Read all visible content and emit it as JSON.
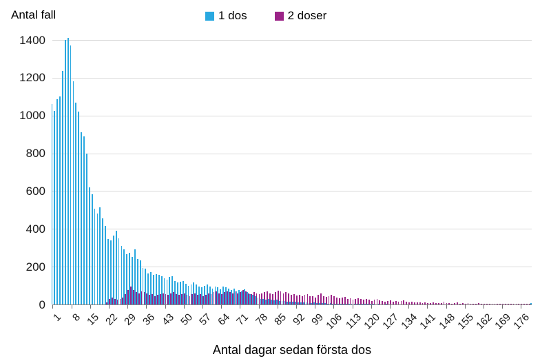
{
  "y_axis_title": "Antal fall",
  "x_axis_title": "Antal dagar sedan första dos",
  "legend": {
    "items": [
      {
        "label": "1 dos",
        "color": "#29a8e0",
        "icon": "blue-square-swatch"
      },
      {
        "label": "2 doser",
        "color": "#9b2387",
        "icon": "purple-square-swatch"
      }
    ]
  },
  "colors": {
    "series_1_dos": "#29a8e0",
    "series_2_doser": "#9b2387",
    "gridline": "#d9d9d9",
    "axis": "#898989",
    "text": "#000000"
  },
  "chart_data": {
    "type": "bar",
    "title": "",
    "xlabel": "Antal dagar sedan första dos",
    "ylabel": "Antal fall",
    "x_unit": "days since first dose",
    "x_range": [
      1,
      180
    ],
    "ylim": [
      0,
      1400
    ],
    "y_ticks": [
      0,
      200,
      400,
      600,
      800,
      1000,
      1200,
      1400
    ],
    "x_tick_labels": [
      "1",
      "8",
      "15",
      "22",
      "29",
      "36",
      "43",
      "50",
      "57",
      "64",
      "71",
      "78",
      "85",
      "92",
      "99",
      "106",
      "113",
      "120",
      "127",
      "134",
      "141",
      "148",
      "155",
      "162",
      "169",
      "176"
    ],
    "grid": true,
    "legend_position": "top-center",
    "series": [
      {
        "name": "1 dos",
        "color": "#29a8e0",
        "values": [
          1060,
          1025,
          1085,
          1100,
          1235,
          1400,
          1410,
          1370,
          1180,
          1070,
          1020,
          910,
          890,
          800,
          620,
          585,
          505,
          480,
          515,
          455,
          415,
          345,
          340,
          365,
          390,
          350,
          310,
          290,
          265,
          275,
          250,
          290,
          240,
          235,
          195,
          190,
          165,
          170,
          155,
          160,
          155,
          150,
          140,
          130,
          145,
          150,
          125,
          115,
          120,
          125,
          110,
          100,
          105,
          115,
          105,
          95,
          90,
          100,
          105,
          95,
          85,
          95,
          90,
          80,
          95,
          90,
          85,
          75,
          85,
          70,
          75,
          70,
          80,
          65,
          55,
          50,
          45,
          35,
          30,
          28,
          25,
          28,
          24,
          22,
          25,
          20,
          18,
          20,
          16,
          15,
          14,
          16,
          12,
          10,
          12,
          10,
          9,
          8,
          10,
          8,
          7,
          8,
          6,
          5,
          6,
          5,
          4,
          5,
          4,
          3,
          4,
          3,
          3,
          2,
          3,
          2,
          2,
          3,
          2,
          2,
          2,
          1,
          2,
          1,
          1,
          2,
          1,
          1,
          1,
          1,
          1,
          1,
          1,
          0,
          1,
          0,
          1,
          0,
          1,
          0,
          1,
          0,
          0,
          1,
          0,
          0,
          1,
          0,
          0,
          1,
          0,
          0,
          1,
          0,
          0,
          0,
          1,
          0,
          0,
          0,
          0,
          1,
          0,
          0,
          0,
          1,
          0,
          0,
          0,
          0,
          0,
          0,
          1,
          0,
          0,
          0,
          0,
          0,
          0,
          8
        ]
      },
      {
        "name": "2 doser",
        "color": "#9b2387",
        "values": [
          0,
          0,
          0,
          0,
          0,
          0,
          0,
          0,
          0,
          0,
          0,
          0,
          0,
          0,
          0,
          0,
          0,
          0,
          0,
          0,
          10,
          30,
          35,
          30,
          25,
          30,
          35,
          55,
          75,
          95,
          75,
          65,
          60,
          70,
          65,
          60,
          50,
          55,
          45,
          50,
          55,
          60,
          55,
          50,
          60,
          65,
          55,
          50,
          55,
          60,
          50,
          45,
          55,
          60,
          50,
          55,
          45,
          50,
          60,
          55,
          65,
          70,
          60,
          55,
          65,
          70,
          65,
          60,
          70,
          60,
          65,
          75,
          70,
          60,
          55,
          65,
          60,
          55,
          60,
          65,
          70,
          60,
          55,
          65,
          72,
          68,
          60,
          65,
          58,
          52,
          55,
          48,
          52,
          45,
          50,
          55,
          45,
          42,
          38,
          52,
          58,
          45,
          40,
          44,
          50,
          42,
          36,
          32,
          36,
          40,
          30,
          34,
          26,
          30,
          34,
          28,
          24,
          28,
          24,
          20,
          24,
          28,
          22,
          18,
          15,
          18,
          22,
          14,
          18,
          14,
          18,
          22,
          14,
          10,
          14,
          10,
          12,
          10,
          8,
          10,
          8,
          6,
          10,
          8,
          6,
          8,
          14,
          6,
          8,
          5,
          6,
          12,
          5,
          6,
          5,
          8,
          5,
          4,
          5,
          6,
          4,
          5,
          4,
          3,
          5,
          4,
          3,
          4,
          3,
          3,
          4,
          3,
          2,
          3,
          2,
          3,
          2,
          2,
          2,
          0
        ]
      }
    ]
  }
}
